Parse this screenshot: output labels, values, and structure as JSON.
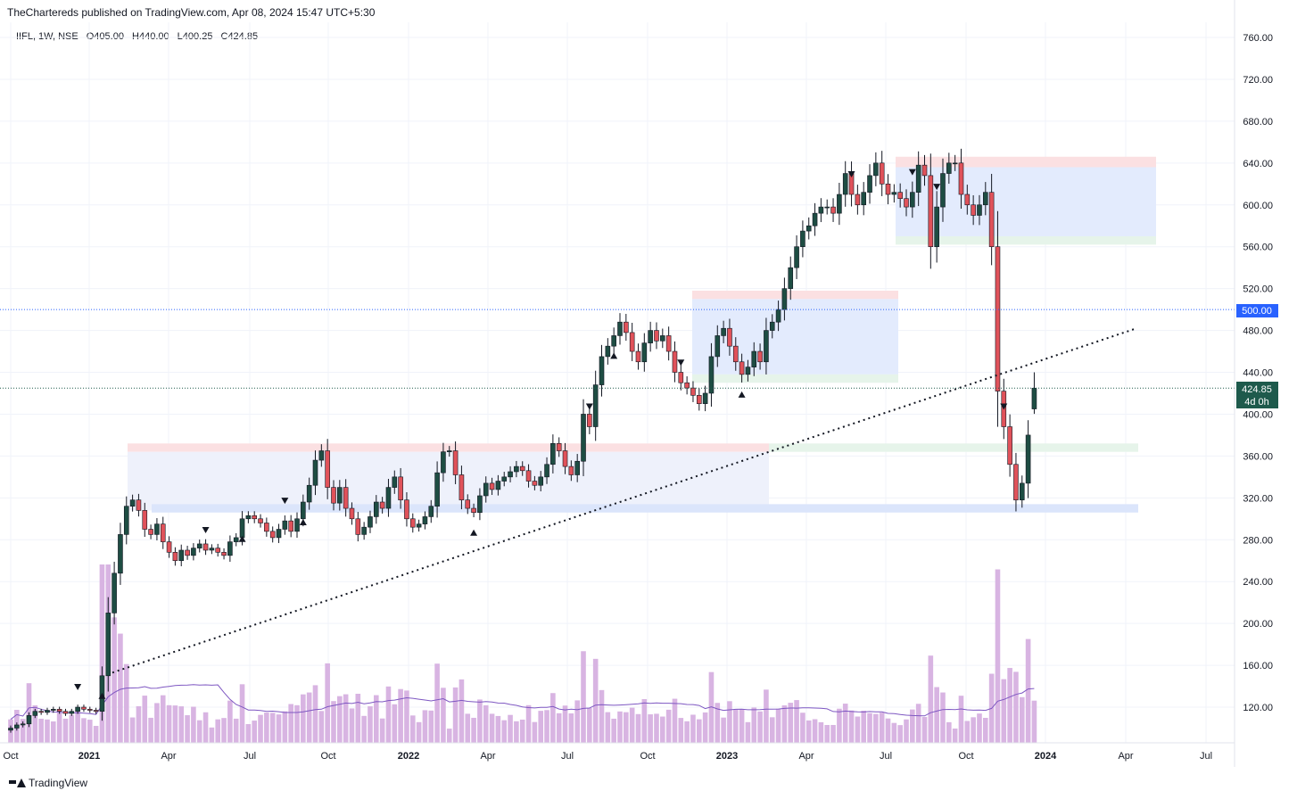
{
  "header": {
    "publisher_text": "TheChartereds published on TradingView.com, Apr 08, 2024 15:47 UTC+5:30"
  },
  "legend": {
    "symbol": "IIFL, 1W, NSE",
    "open": "O405.00",
    "high": "H440.00",
    "low": "L400.25",
    "close": "C424.85"
  },
  "footer": {
    "brand": "TradingView"
  },
  "price_labels": {
    "level_500": "500.00",
    "last_price": "424.85",
    "countdown": "4d 0h"
  },
  "colors": {
    "up": "#26a69a",
    "up_body": "#1e4d43",
    "down": "#e0525a",
    "volume": "#d8b4e2",
    "vol_ma": "#7e57c2",
    "level_line": "#2962ff",
    "last_label": "#1e5a4c"
  },
  "chart_data": {
    "type": "candlestick",
    "timeframe": "1W",
    "y_axis": {
      "ticks": [
        120,
        160,
        200,
        240,
        280,
        320,
        360,
        400,
        440,
        480,
        520,
        560,
        600,
        640,
        680,
        720,
        760
      ],
      "ylim": [
        92,
        775
      ]
    },
    "x_axis": {
      "labels": [
        "Oct",
        "2021",
        "Apr",
        "Jul",
        "Oct",
        "2022",
        "Apr",
        "Jul",
        "Oct",
        "2023",
        "Apr",
        "Jul",
        "Oct",
        "2024",
        "Apr",
        "Jul"
      ],
      "bold": [
        "2021",
        "2022",
        "2023",
        "2024"
      ]
    },
    "last_ohlc": {
      "open": 405.0,
      "high": 440.0,
      "low": 400.25,
      "close": 424.85
    },
    "horizontal_levels": [
      500,
      424.85
    ],
    "trendline": {
      "start": [
        "2021-01-11",
        153
      ],
      "end": [
        "2024-04-08",
        482
      ],
      "style": "dotted"
    },
    "closes": [
      100,
      103,
      104,
      112,
      116,
      115,
      117,
      118,
      116,
      114,
      116,
      120,
      118,
      117,
      116,
      150,
      210,
      248,
      285,
      312,
      318,
      308,
      290,
      285,
      295,
      278,
      268,
      260,
      270,
      265,
      272,
      276,
      270,
      272,
      268,
      265,
      278,
      282,
      300,
      303,
      300,
      296,
      288,
      282,
      290,
      298,
      288,
      300,
      316,
      332,
      356,
      365,
      330,
      315,
      330,
      310,
      300,
      285,
      292,
      302,
      316,
      310,
      330,
      340,
      318,
      300,
      292,
      295,
      302,
      312,
      344,
      364,
      365,
      342,
      318,
      310,
      306,
      322,
      334,
      328,
      336,
      340,
      345,
      350,
      346,
      336,
      332,
      340,
      352,
      372,
      365,
      350,
      342,
      355,
      400,
      388,
      428,
      455,
      465,
      475,
      488,
      478,
      460,
      450,
      468,
      480,
      470,
      475,
      460,
      440,
      430,
      425,
      418,
      410,
      420,
      455,
      475,
      482,
      465,
      450,
      438,
      445,
      460,
      450,
      480,
      488,
      500,
      520,
      540,
      560,
      575,
      580,
      592,
      598,
      598,
      592,
      610,
      630,
      610,
      600,
      612,
      628,
      640,
      620,
      610,
      612,
      606,
      598,
      612,
      638,
      628,
      560,
      598,
      630,
      640,
      640,
      610,
      600,
      590,
      600,
      612,
      560,
      422,
      388,
      352,
      318,
      334,
      380,
      424.85
    ],
    "volume_ma": "moving average overlay",
    "markers": "triangle up/down pivot markers",
    "zones": [
      "red/blue/green consolidation boxes at 300-370, 430-520, 560-645"
    ]
  }
}
